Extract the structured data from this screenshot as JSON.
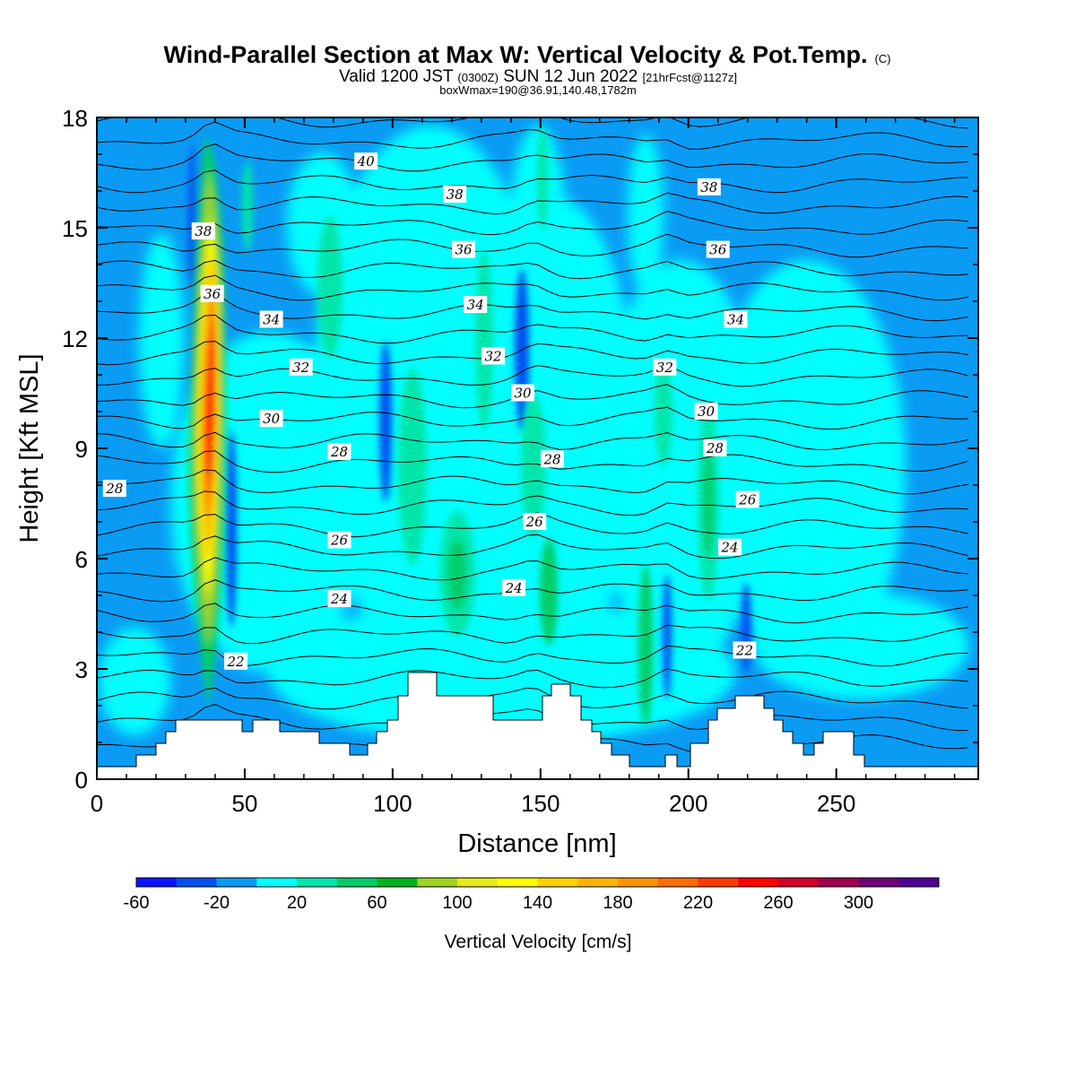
{
  "chart_data": {
    "type": "contour",
    "title": "Wind-Parallel Section at Max W: Vertical Velocity & Pot.Temp.",
    "title_suffix": "(C)",
    "subtitle": {
      "prefix": "Valid 1200 JST ",
      "zulu": "(0300Z)",
      "middle": " SUN 12 Jun 2022 ",
      "fcst": "[21hrFcst@1127z]"
    },
    "subsubtitle": "boxWmax=190@36.91,140.48,1782m",
    "xlabel": "Distance [nm]",
    "ylabel": "Height [Kft MSL]",
    "xlim": [
      0,
      298
    ],
    "ylim": [
      0,
      18
    ],
    "x_ticks": [
      "0",
      "50",
      "100",
      "150",
      "200",
      "250"
    ],
    "x_tick_values": [
      0,
      50,
      100,
      150,
      200,
      250
    ],
    "y_ticks": [
      "0",
      "3",
      "6",
      "9",
      "12",
      "15",
      "18"
    ],
    "y_tick_values": [
      0,
      3,
      6,
      9,
      12,
      15,
      18
    ],
    "colorbar": {
      "title": "Vertical Velocity [cm/s]",
      "labels": [
        "-60",
        "-20",
        "20",
        "60",
        "100",
        "140",
        "180",
        "220",
        "260",
        "300"
      ],
      "levels": [
        -60,
        -40,
        -20,
        0,
        20,
        40,
        60,
        80,
        100,
        120,
        140,
        160,
        180,
        200,
        220,
        240,
        260,
        280,
        300,
        320
      ],
      "colors": [
        "#0a14ff",
        "#0050f0",
        "#0a9bf5",
        "#00ffff",
        "#00e6aa",
        "#00cd66",
        "#00b41e",
        "#a0d21e",
        "#e6ea14",
        "#ffff00",
        "#ffd200",
        "#ffb400",
        "#ff9600",
        "#ff6e00",
        "#ff3c00",
        "#ff0000",
        "#d20028",
        "#a00050",
        "#6e0078",
        "#500096"
      ]
    },
    "theta_contour_labels": [
      {
        "text": "40",
        "x": 91,
        "y": 16.8
      },
      {
        "text": "38",
        "x": 121,
        "y": 15.9
      },
      {
        "text": "38",
        "x": 207,
        "y": 16.1
      },
      {
        "text": "38",
        "x": 36,
        "y": 14.9
      },
      {
        "text": "36",
        "x": 124,
        "y": 14.4
      },
      {
        "text": "36",
        "x": 210,
        "y": 14.4
      },
      {
        "text": "36",
        "x": 39,
        "y": 13.2
      },
      {
        "text": "34",
        "x": 59,
        "y": 12.5
      },
      {
        "text": "34",
        "x": 128,
        "y": 12.9
      },
      {
        "text": "34",
        "x": 216,
        "y": 12.5
      },
      {
        "text": "32",
        "x": 69,
        "y": 11.2
      },
      {
        "text": "32",
        "x": 134,
        "y": 11.5
      },
      {
        "text": "32",
        "x": 192,
        "y": 11.2
      },
      {
        "text": "30",
        "x": 59,
        "y": 9.8
      },
      {
        "text": "30",
        "x": 144,
        "y": 10.5
      },
      {
        "text": "30",
        "x": 206,
        "y": 10.0
      },
      {
        "text": "28",
        "x": 82,
        "y": 8.9
      },
      {
        "text": "28",
        "x": 154,
        "y": 8.7
      },
      {
        "text": "28",
        "x": 209,
        "y": 9.0
      },
      {
        "text": "28",
        "x": 6,
        "y": 7.9
      },
      {
        "text": "26",
        "x": 220,
        "y": 7.6
      },
      {
        "text": "26",
        "x": 148,
        "y": 7.0
      },
      {
        "text": "26",
        "x": 82,
        "y": 6.5
      },
      {
        "text": "24",
        "x": 214,
        "y": 6.3
      },
      {
        "text": "24",
        "x": 141,
        "y": 5.2
      },
      {
        "text": "24",
        "x": 82,
        "y": 4.9
      },
      {
        "text": "22",
        "x": 219,
        "y": 3.5
      },
      {
        "text": "22",
        "x": 47,
        "y": 3.2
      }
    ]
  }
}
